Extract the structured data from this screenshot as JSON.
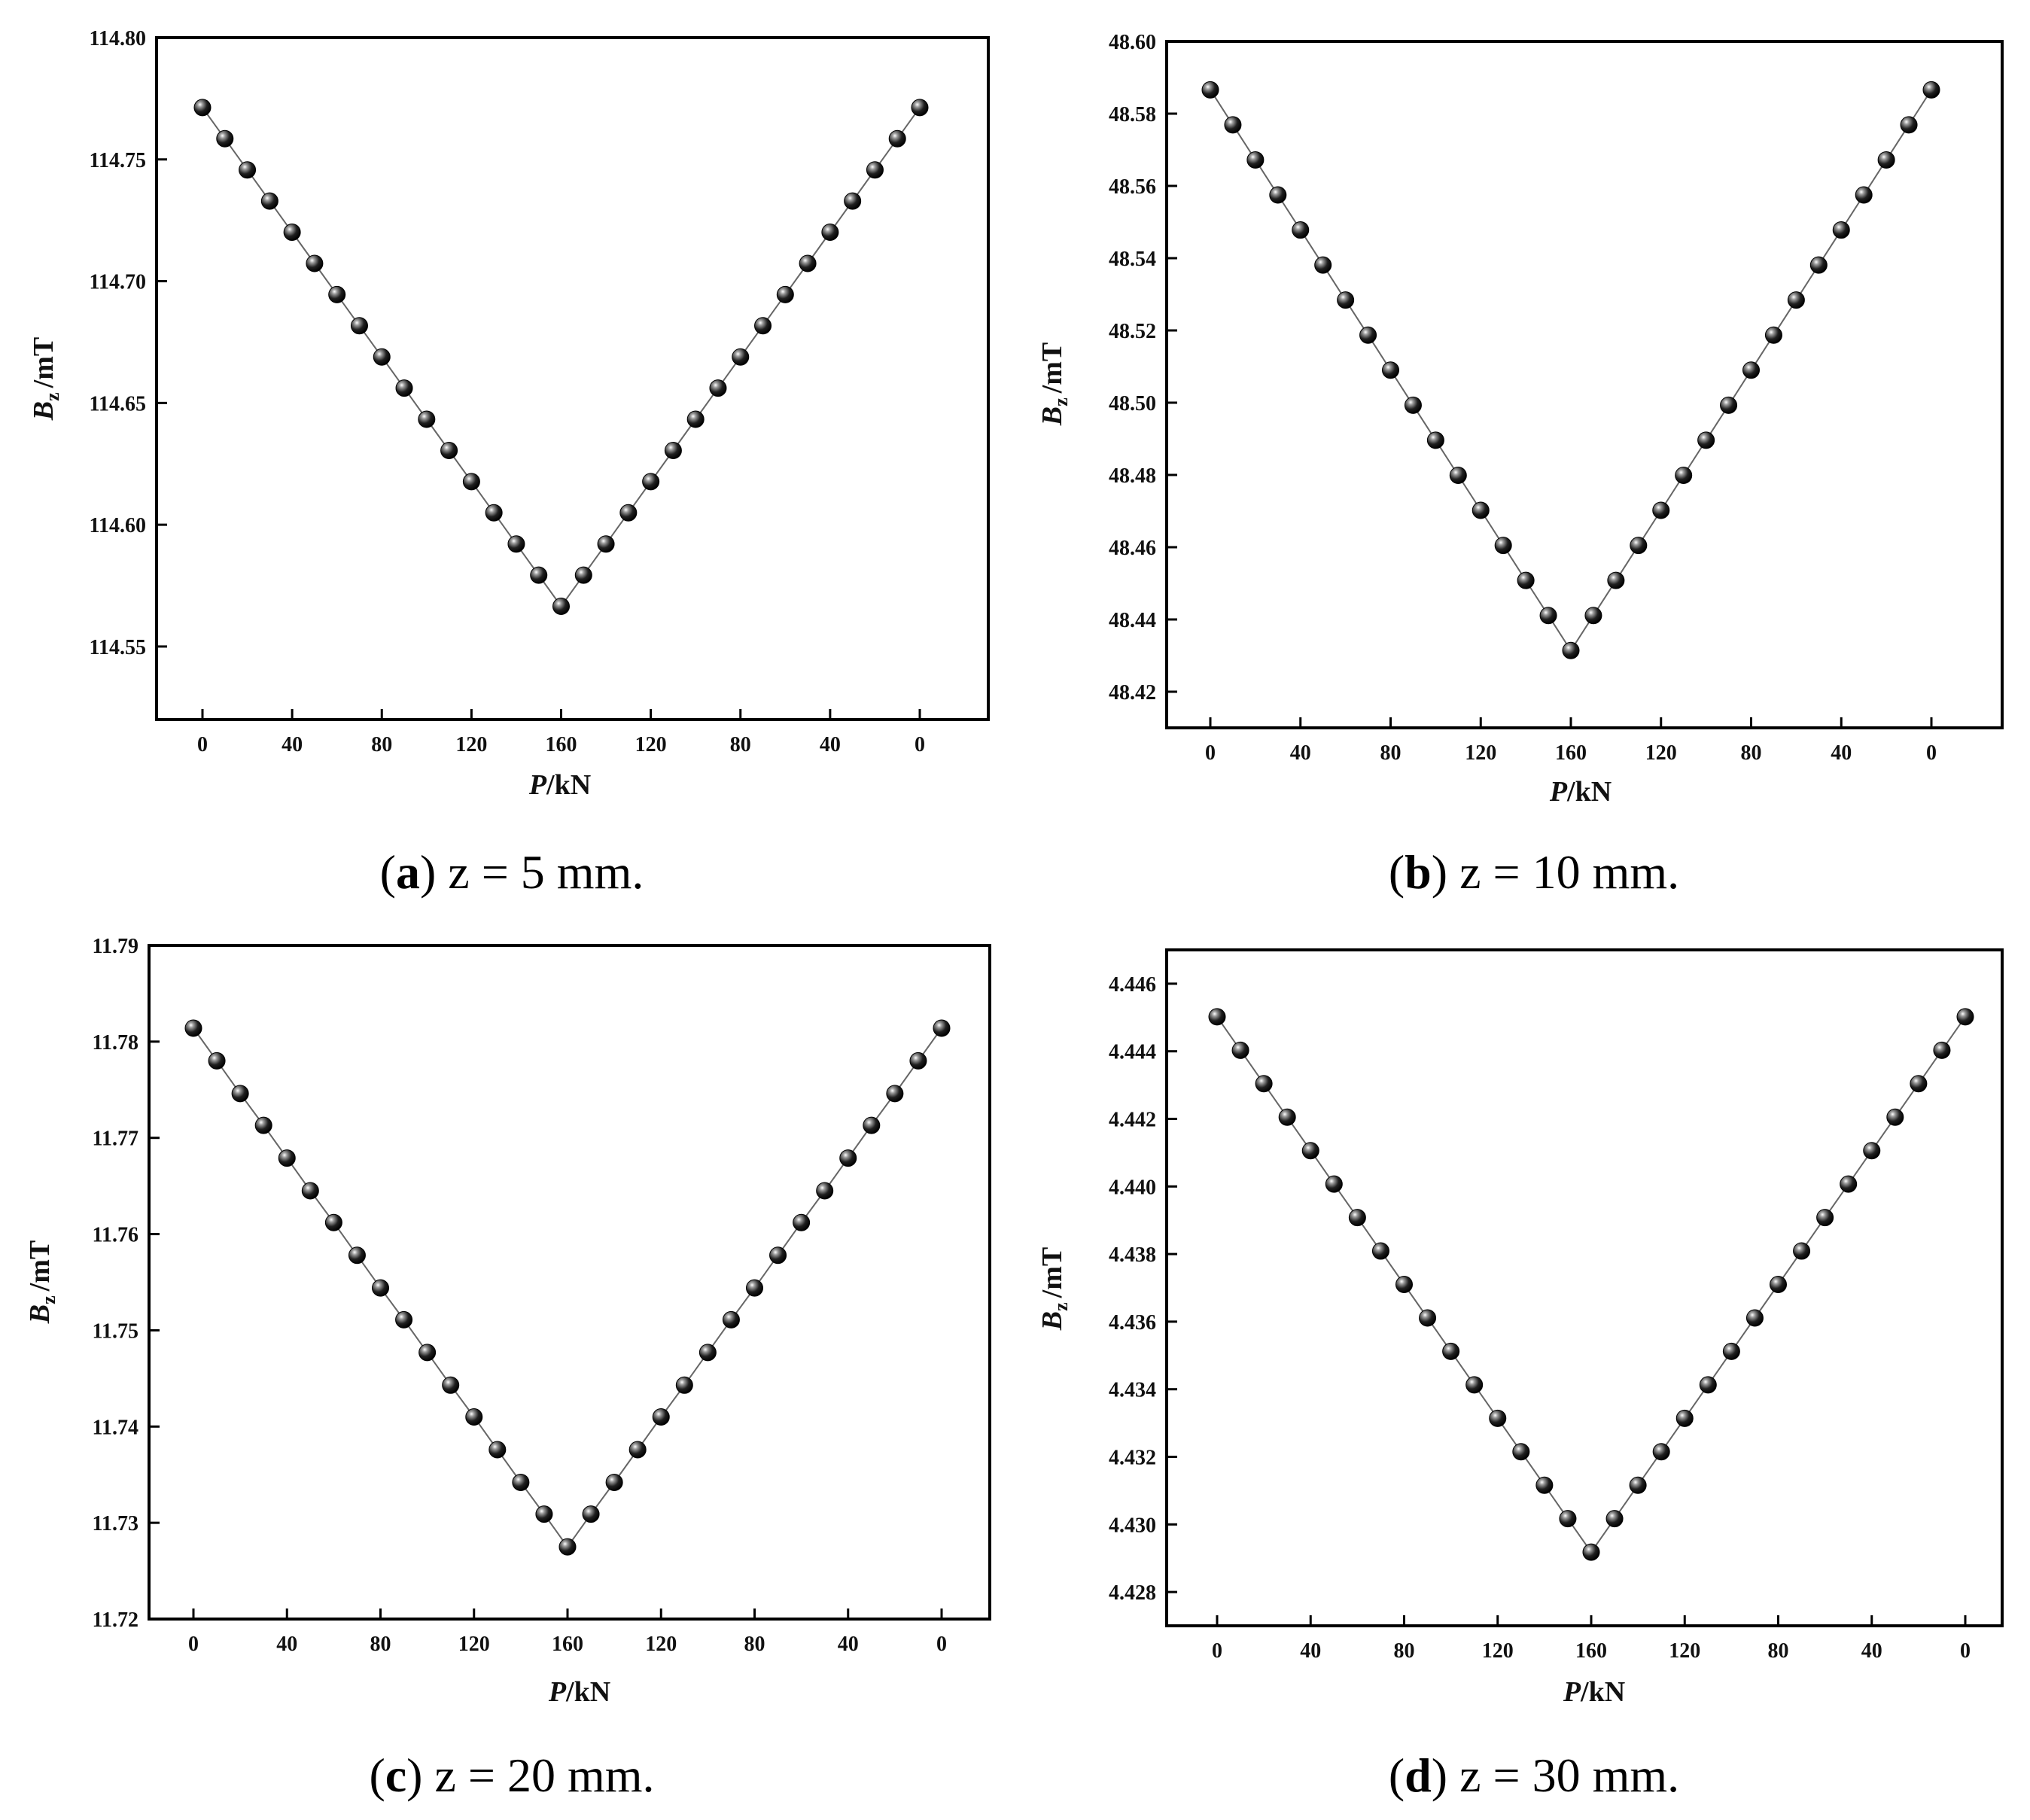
{
  "chart_data": [
    {
      "type": "scatter",
      "panel": "a",
      "caption": {
        "letter": "a",
        "text": "z = 5 mm."
      },
      "ylabel": {
        "symbol": "B",
        "subscript": "z",
        "unit": "/mT"
      },
      "xlabel": {
        "symbol": "P",
        "unit": "/kN"
      },
      "ylim": [
        114.52,
        114.8
      ],
      "yticks": [
        114.55,
        114.6,
        114.65,
        114.7,
        114.75,
        114.8
      ],
      "ytick_labels": [
        "114.55",
        "114.60",
        "114.65",
        "114.70",
        "114.75",
        "114.80"
      ],
      "xtick_labels": [
        "0",
        "40",
        "80",
        "120",
        "160",
        "120",
        "80",
        "40",
        "0"
      ],
      "loads": [
        0,
        10,
        20,
        30,
        40,
        50,
        60,
        70,
        80,
        90,
        100,
        110,
        120,
        130,
        140,
        150,
        160,
        150,
        140,
        130,
        120,
        110,
        100,
        90,
        80,
        70,
        60,
        50,
        40,
        30,
        20,
        10,
        0
      ],
      "values": [
        114.7713,
        114.7585,
        114.7457,
        114.7329,
        114.7201,
        114.7073,
        114.6945,
        114.6817,
        114.6689,
        114.6561,
        114.6433,
        114.6305,
        114.6177,
        114.6049,
        114.5921,
        114.5793,
        114.5665,
        114.5793,
        114.5921,
        114.6049,
        114.6177,
        114.6305,
        114.6433,
        114.6561,
        114.6689,
        114.6817,
        114.6945,
        114.7073,
        114.7201,
        114.7329,
        114.7457,
        114.7585,
        114.7713
      ]
    },
    {
      "type": "scatter",
      "panel": "b",
      "caption": {
        "letter": "b",
        "text": "z = 10 mm."
      },
      "ylabel": {
        "symbol": "B",
        "subscript": "z",
        "unit": "/mT"
      },
      "xlabel": {
        "symbol": "P",
        "unit": "/kN"
      },
      "ylim": [
        48.41,
        48.6
      ],
      "yticks": [
        48.42,
        48.44,
        48.46,
        48.48,
        48.5,
        48.52,
        48.54,
        48.56,
        48.58,
        48.6
      ],
      "ytick_labels": [
        "48.42",
        "48.44",
        "48.46",
        "48.48",
        "48.50",
        "48.52",
        "48.54",
        "48.56",
        "48.58",
        "48.60"
      ],
      "xtick_labels": [
        "0",
        "40",
        "80",
        "120",
        "160",
        "120",
        "80",
        "40",
        "0"
      ],
      "loads": [
        0,
        10,
        20,
        30,
        40,
        50,
        60,
        70,
        80,
        90,
        100,
        110,
        120,
        130,
        140,
        150,
        160,
        150,
        140,
        130,
        120,
        110,
        100,
        90,
        80,
        70,
        60,
        50,
        40,
        30,
        20,
        10,
        0
      ],
      "values": [
        48.5866,
        48.5769,
        48.5672,
        48.5575,
        48.5478,
        48.5381,
        48.5284,
        48.5187,
        48.509,
        48.4993,
        48.4896,
        48.4799,
        48.4702,
        48.4605,
        48.4508,
        48.4411,
        48.4314,
        48.4411,
        48.4508,
        48.4605,
        48.4702,
        48.4799,
        48.4896,
        48.4993,
        48.509,
        48.5187,
        48.5284,
        48.5381,
        48.5478,
        48.5575,
        48.5672,
        48.5769,
        48.5866
      ]
    },
    {
      "type": "scatter",
      "panel": "c",
      "caption": {
        "letter": "c",
        "text": "z = 20 mm."
      },
      "ylabel": {
        "symbol": "B",
        "subscript": "z",
        "unit": "/mT"
      },
      "xlabel": {
        "symbol": "P",
        "unit": "/kN"
      },
      "ylim": [
        11.72,
        11.79
      ],
      "yticks": [
        11.72,
        11.73,
        11.74,
        11.75,
        11.76,
        11.77,
        11.78,
        11.79
      ],
      "ytick_labels": [
        "11.72",
        "11.73",
        "11.74",
        "11.75",
        "11.76",
        "11.77",
        "11.78",
        "11.79"
      ],
      "xtick_labels": [
        "0",
        "40",
        "80",
        "120",
        "160",
        "120",
        "80",
        "40",
        "0"
      ],
      "loads": [
        0,
        10,
        20,
        30,
        40,
        50,
        60,
        70,
        80,
        90,
        100,
        110,
        120,
        130,
        140,
        150,
        160,
        150,
        140,
        130,
        120,
        110,
        100,
        90,
        80,
        70,
        60,
        50,
        40,
        30,
        20,
        10,
        0
      ],
      "values": [
        11.7814,
        11.778,
        11.7746,
        11.7713,
        11.7679,
        11.7645,
        11.7612,
        11.7578,
        11.7544,
        11.7511,
        11.7477,
        11.7443,
        11.741,
        11.7376,
        11.7342,
        11.7309,
        11.7275,
        11.7309,
        11.7342,
        11.7376,
        11.741,
        11.7443,
        11.7477,
        11.7511,
        11.7544,
        11.7578,
        11.7612,
        11.7645,
        11.7679,
        11.7713,
        11.7746,
        11.778,
        11.7814
      ]
    },
    {
      "type": "scatter",
      "panel": "d",
      "caption": {
        "letter": "d",
        "text": "z = 30 mm."
      },
      "ylabel": {
        "symbol": "B",
        "subscript": "z",
        "unit": "/mT"
      },
      "xlabel": {
        "symbol": "P",
        "unit": "/kN"
      },
      "ylim": [
        4.427,
        4.447
      ],
      "yticks": [
        4.428,
        4.43,
        4.432,
        4.434,
        4.436,
        4.438,
        4.44,
        4.442,
        4.444,
        4.446
      ],
      "ytick_labels": [
        "4.428",
        "4.430",
        "4.432",
        "4.434",
        "4.436",
        "4.438",
        "4.440",
        "4.442",
        "4.444",
        "4.446"
      ],
      "xtick_labels": [
        "0",
        "40",
        "80",
        "120",
        "160",
        "120",
        "80",
        "40",
        "0"
      ],
      "loads": [
        0,
        10,
        20,
        30,
        40,
        50,
        60,
        70,
        80,
        90,
        100,
        110,
        120,
        130,
        140,
        150,
        160,
        150,
        140,
        130,
        120,
        110,
        100,
        90,
        80,
        70,
        60,
        50,
        40,
        30,
        20,
        10,
        0
      ],
      "values": [
        4.44502,
        4.44403,
        4.44304,
        4.44205,
        4.44106,
        4.44007,
        4.43908,
        4.43809,
        4.4371,
        4.43611,
        4.43512,
        4.43413,
        4.43314,
        4.43215,
        4.43116,
        4.43017,
        4.42918,
        4.43017,
        4.43116,
        4.43215,
        4.43314,
        4.43413,
        4.43512,
        4.43611,
        4.4371,
        4.43809,
        4.43908,
        4.44007,
        4.44106,
        4.44205,
        4.44304,
        4.44403,
        4.44502
      ]
    }
  ]
}
